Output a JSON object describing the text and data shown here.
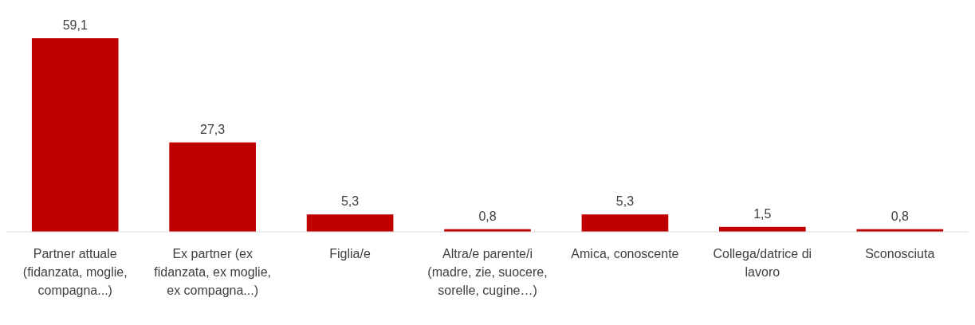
{
  "chart_data": {
    "type": "bar",
    "categories": [
      "Partner attuale (fidanzata, moglie, compagna...)",
      "Ex partner (ex fidanzata, ex moglie, ex compagna...)",
      "Figlia/e",
      "Altra/e parente/i (madre, zie, suocere, sorelle, cugine…)",
      "Amica, conoscente",
      "Collega/datrice di lavoro",
      "Sconosciuta"
    ],
    "values": [
      59.1,
      27.3,
      5.3,
      0.8,
      5.3,
      1.5,
      0.8
    ],
    "value_labels": [
      "59,1",
      "27,3",
      "5,3",
      "0,8",
      "5,3",
      "1,5",
      "0,8"
    ],
    "color": "#c00000"
  }
}
